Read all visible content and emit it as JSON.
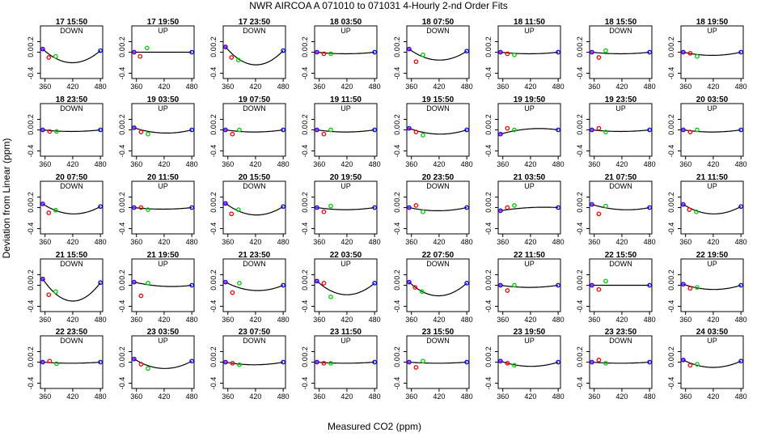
{
  "figure": {
    "title": "NWR   AIRCOA A    071010 to 071031   4-Hourly 2-nd Order Fits",
    "xlabel": "Measured CO2 (ppm)",
    "ylabel": "Deviation from Linear (ppm)"
  },
  "colors": {
    "curve": "#000000",
    "standard_1": "#0000ff",
    "standard_2": "#ff0000",
    "standard_3": "#00cc00",
    "standard_4": "#cc00cc"
  },
  "chart_data": {
    "type": "scatter",
    "layout": "small multiples, 5 rows x 8 columns",
    "xlim": [
      350,
      485
    ],
    "ylim": [
      -0.5,
      0.5
    ],
    "x_ticks": [
      360,
      420,
      480
    ],
    "y_ticks": [
      -0.4,
      0.0,
      0.2
    ],
    "y_tick_labels": [
      "-0.4",
      "0.0",
      "0.2"
    ],
    "grid": false,
    "panels": [
      {
        "title": "17 15:50",
        "direction": "DOWN",
        "curve_min_y": -0.2,
        "points": [
          [
            355,
            0.06
          ],
          [
            368,
            -0.1
          ],
          [
            383,
            -0.08
          ],
          [
            480,
            0.03
          ]
        ]
      },
      {
        "title": "17 19:50",
        "direction": "UP",
        "curve_min_y": 0.0,
        "points": [
          [
            355,
            0.0
          ],
          [
            368,
            -0.08
          ],
          [
            383,
            0.08
          ],
          [
            480,
            0.0
          ]
        ]
      },
      {
        "title": "17 23:50",
        "direction": "DOWN",
        "curve_min_y": -0.24,
        "points": [
          [
            355,
            0.1
          ],
          [
            368,
            -0.1
          ],
          [
            383,
            -0.15
          ],
          [
            480,
            0.03
          ]
        ]
      },
      {
        "title": "18 03:50",
        "direction": "UP",
        "curve_min_y": -0.03,
        "points": [
          [
            355,
            0.0
          ],
          [
            370,
            -0.03
          ],
          [
            385,
            -0.03
          ],
          [
            480,
            0.0
          ]
        ]
      },
      {
        "title": "18 07:50",
        "direction": "DOWN",
        "curve_min_y": -0.15,
        "points": [
          [
            355,
            0.06
          ],
          [
            370,
            -0.18
          ],
          [
            385,
            -0.05
          ],
          [
            480,
            0.02
          ]
        ]
      },
      {
        "title": "18 11:50",
        "direction": "UP",
        "curve_min_y": -0.03,
        "points": [
          [
            355,
            0.0
          ],
          [
            370,
            -0.03
          ],
          [
            385,
            -0.05
          ],
          [
            480,
            0.0
          ]
        ]
      },
      {
        "title": "18 15:50",
        "direction": "DOWN",
        "curve_min_y": -0.03,
        "points": [
          [
            355,
            0.0
          ],
          [
            370,
            -0.1
          ],
          [
            385,
            0.03
          ],
          [
            480,
            0.0
          ]
        ]
      },
      {
        "title": "18 19:50",
        "direction": "UP",
        "curve_min_y": -0.06,
        "points": [
          [
            355,
            0.0
          ],
          [
            370,
            -0.02
          ],
          [
            385,
            -0.08
          ],
          [
            480,
            0.0
          ]
        ]
      },
      {
        "title": "18 23:50",
        "direction": "DOWN",
        "curve_min_y": -0.03,
        "points": [
          [
            355,
            0.0
          ],
          [
            370,
            -0.03
          ],
          [
            385,
            -0.03
          ],
          [
            480,
            0.0
          ]
        ]
      },
      {
        "title": "19 03:50",
        "direction": "UP",
        "curve_min_y": -0.06,
        "points": [
          [
            355,
            0.04
          ],
          [
            370,
            -0.04
          ],
          [
            385,
            -0.08
          ],
          [
            480,
            0.0
          ]
        ]
      },
      {
        "title": "19 07:50",
        "direction": "DOWN",
        "curve_min_y": -0.04,
        "points": [
          [
            355,
            0.0
          ],
          [
            370,
            -0.08
          ],
          [
            385,
            0.0
          ],
          [
            480,
            0.0
          ]
        ]
      },
      {
        "title": "19 11:50",
        "direction": "UP",
        "curve_min_y": -0.04,
        "points": [
          [
            355,
            0.0
          ],
          [
            370,
            -0.08
          ],
          [
            385,
            0.0
          ],
          [
            480,
            0.0
          ]
        ]
      },
      {
        "title": "19 15:50",
        "direction": "DOWN",
        "curve_min_y": -0.08,
        "points": [
          [
            355,
            0.03
          ],
          [
            370,
            -0.04
          ],
          [
            385,
            -0.1
          ],
          [
            480,
            0.0
          ]
        ]
      },
      {
        "title": "19 19:50",
        "direction": "UP",
        "curve_min_y": 0.02,
        "points": [
          [
            355,
            -0.08
          ],
          [
            370,
            0.03
          ],
          [
            385,
            0.0
          ],
          [
            480,
            0.0
          ]
        ]
      },
      {
        "title": "19 23:50",
        "direction": "UP",
        "curve_min_y": -0.03,
        "points": [
          [
            355,
            0.0
          ],
          [
            370,
            0.03
          ],
          [
            385,
            -0.04
          ],
          [
            480,
            0.0
          ]
        ]
      },
      {
        "title": "20 03:50",
        "direction": "UP",
        "curve_min_y": -0.04,
        "points": [
          [
            355,
            0.0
          ],
          [
            370,
            -0.04
          ],
          [
            385,
            0.0
          ],
          [
            480,
            0.0
          ]
        ]
      },
      {
        "title": "20 07:50",
        "direction": "DOWN",
        "curve_min_y": -0.12,
        "points": [
          [
            355,
            0.07
          ],
          [
            368,
            -0.1
          ],
          [
            383,
            -0.05
          ],
          [
            480,
            0.02
          ]
        ]
      },
      {
        "title": "20 11:50",
        "direction": "UP",
        "curve_min_y": -0.03,
        "points": [
          [
            355,
            0.0
          ],
          [
            370,
            0.0
          ],
          [
            385,
            -0.04
          ],
          [
            480,
            0.0
          ]
        ]
      },
      {
        "title": "20 15:50",
        "direction": "DOWN",
        "curve_min_y": -0.14,
        "points": [
          [
            355,
            0.08
          ],
          [
            368,
            -0.12
          ],
          [
            383,
            -0.04
          ],
          [
            480,
            0.02
          ]
        ]
      },
      {
        "title": "20 19:50",
        "direction": "UP",
        "curve_min_y": -0.04,
        "points": [
          [
            355,
            0.0
          ],
          [
            370,
            -0.08
          ],
          [
            385,
            0.03
          ],
          [
            480,
            0.0
          ]
        ]
      },
      {
        "title": "20 23:50",
        "direction": "DOWN",
        "curve_min_y": -0.06,
        "points": [
          [
            355,
            0.0
          ],
          [
            370,
            0.04
          ],
          [
            385,
            -0.08
          ],
          [
            480,
            0.0
          ]
        ]
      },
      {
        "title": "21 03:50",
        "direction": "UP",
        "curve_min_y": 0.0,
        "points": [
          [
            355,
            -0.06
          ],
          [
            370,
            0.0
          ],
          [
            385,
            0.04
          ],
          [
            480,
            0.0
          ]
        ]
      },
      {
        "title": "21 07:50",
        "direction": "DOWN",
        "curve_min_y": -0.04,
        "points": [
          [
            355,
            0.06
          ],
          [
            370,
            -0.12
          ],
          [
            385,
            0.03
          ],
          [
            480,
            0.0
          ]
        ]
      },
      {
        "title": "21 11:50",
        "direction": "UP",
        "curve_min_y": -0.12,
        "points": [
          [
            355,
            0.06
          ],
          [
            368,
            -0.04
          ],
          [
            383,
            -0.08
          ],
          [
            480,
            0.02
          ]
        ]
      },
      {
        "title": "21 15:50",
        "direction": "DOWN",
        "curve_min_y": -0.3,
        "points": [
          [
            355,
            0.12
          ],
          [
            368,
            -0.18
          ],
          [
            383,
            -0.12
          ],
          [
            480,
            0.05
          ]
        ]
      },
      {
        "title": "21 19:50",
        "direction": "UP",
        "curve_min_y": -0.02,
        "points": [
          [
            355,
            0.06
          ],
          [
            370,
            -0.2
          ],
          [
            385,
            0.04
          ],
          [
            480,
            0.0
          ]
        ]
      },
      {
        "title": "21 23:50",
        "direction": "DOWN",
        "curve_min_y": -0.1,
        "points": [
          [
            355,
            0.06
          ],
          [
            370,
            -0.14
          ],
          [
            385,
            0.04
          ],
          [
            480,
            0.0
          ]
        ]
      },
      {
        "title": "22 03:50",
        "direction": "UP",
        "curve_min_y": -0.18,
        "points": [
          [
            355,
            0.08
          ],
          [
            370,
            0.04
          ],
          [
            385,
            -0.22
          ],
          [
            480,
            0.04
          ]
        ]
      },
      {
        "title": "22 07:50",
        "direction": "DOWN",
        "curve_min_y": -0.2,
        "points": [
          [
            355,
            0.06
          ],
          [
            368,
            -0.04
          ],
          [
            383,
            -0.12
          ],
          [
            480,
            0.04
          ]
        ]
      },
      {
        "title": "22 11:50",
        "direction": "UP",
        "curve_min_y": -0.04,
        "points": [
          [
            355,
            0.0
          ],
          [
            370,
            -0.1
          ],
          [
            385,
            0.0
          ],
          [
            480,
            0.0
          ]
        ]
      },
      {
        "title": "22 15:50",
        "direction": "DOWN",
        "curve_min_y": 0.0,
        "points": [
          [
            355,
            0.0
          ],
          [
            370,
            -0.08
          ],
          [
            385,
            0.08
          ],
          [
            480,
            0.0
          ]
        ]
      },
      {
        "title": "22 19:50",
        "direction": "UP",
        "curve_min_y": -0.08,
        "points": [
          [
            355,
            0.02
          ],
          [
            370,
            -0.06
          ],
          [
            385,
            -0.04
          ],
          [
            480,
            0.0
          ]
        ]
      },
      {
        "title": "22 23:50",
        "direction": "DOWN",
        "curve_min_y": -0.02,
        "points": [
          [
            355,
            0.0
          ],
          [
            370,
            0.02
          ],
          [
            385,
            -0.03
          ],
          [
            480,
            0.0
          ]
        ]
      },
      {
        "title": "23 03:50",
        "direction": "UP",
        "curve_min_y": -0.12,
        "points": [
          [
            355,
            0.06
          ],
          [
            370,
            -0.04
          ],
          [
            385,
            -0.12
          ],
          [
            480,
            0.02
          ]
        ]
      },
      {
        "title": "23 07:50",
        "direction": "DOWN",
        "curve_min_y": -0.05,
        "points": [
          [
            355,
            0.0
          ],
          [
            370,
            -0.02
          ],
          [
            385,
            -0.05
          ],
          [
            480,
            0.0
          ]
        ]
      },
      {
        "title": "23 11:50",
        "direction": "UP",
        "curve_min_y": -0.02,
        "points": [
          [
            355,
            0.0
          ],
          [
            370,
            -0.02
          ],
          [
            385,
            -0.02
          ],
          [
            480,
            0.0
          ]
        ]
      },
      {
        "title": "23 15:50",
        "direction": "DOWN",
        "curve_min_y": -0.02,
        "points": [
          [
            355,
            0.0
          ],
          [
            370,
            -0.1
          ],
          [
            385,
            0.02
          ],
          [
            480,
            0.0
          ]
        ]
      },
      {
        "title": "23 19:50",
        "direction": "UP",
        "curve_min_y": -0.08,
        "points": [
          [
            355,
            0.02
          ],
          [
            370,
            -0.02
          ],
          [
            385,
            -0.06
          ],
          [
            480,
            0.0
          ]
        ]
      },
      {
        "title": "23 23:50",
        "direction": "DOWN",
        "curve_min_y": -0.02,
        "points": [
          [
            355,
            0.0
          ],
          [
            370,
            0.04
          ],
          [
            385,
            -0.02
          ],
          [
            480,
            0.0
          ]
        ]
      },
      {
        "title": "24 03:50",
        "direction": "UP",
        "curve_min_y": -0.1,
        "points": [
          [
            355,
            0.04
          ],
          [
            370,
            -0.06
          ],
          [
            385,
            -0.04
          ],
          [
            480,
            0.02
          ]
        ]
      }
    ]
  }
}
